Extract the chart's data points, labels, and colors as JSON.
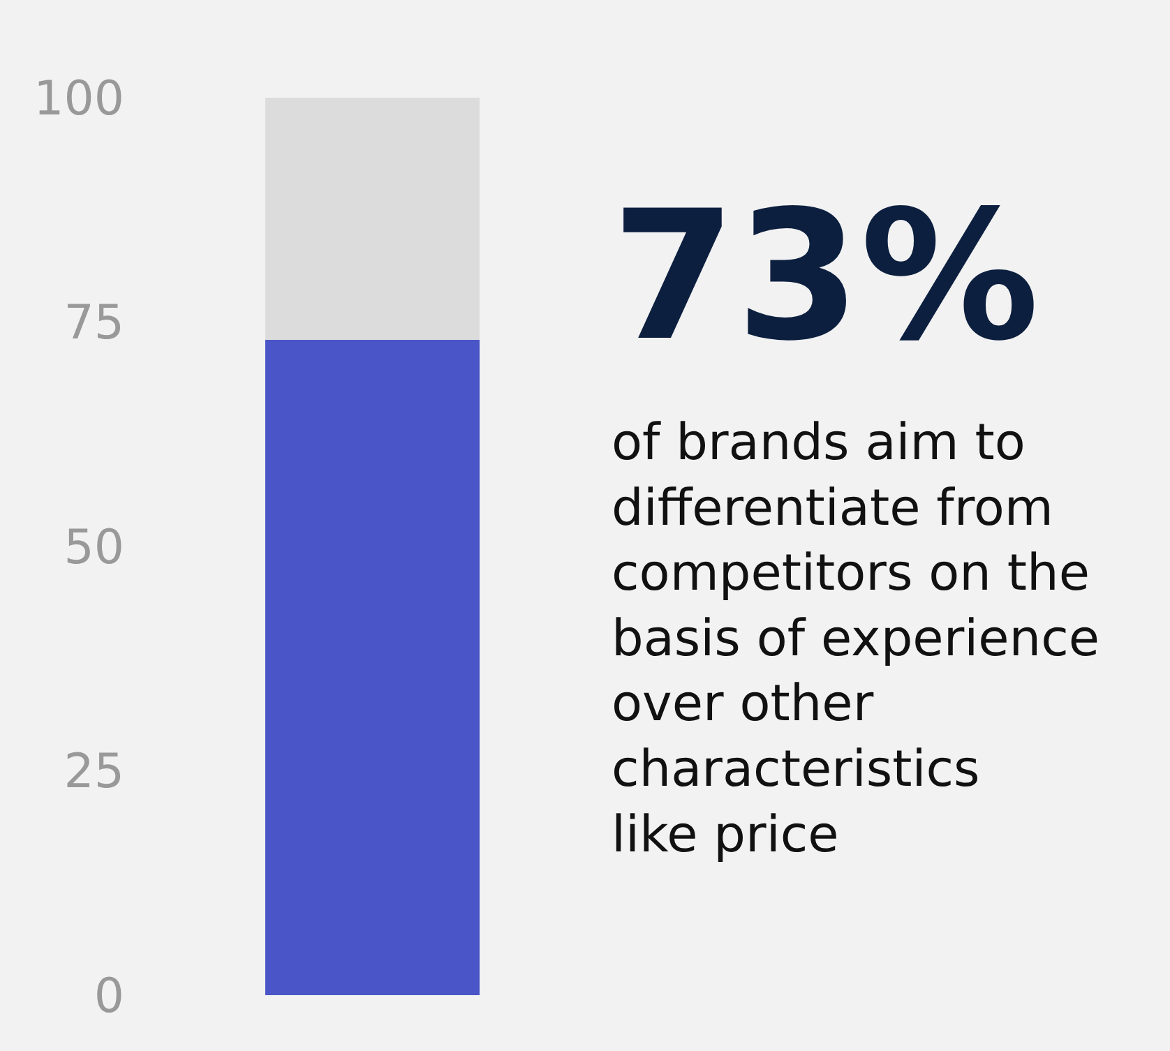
{
  "chart_data": {
    "type": "bar",
    "stacked": true,
    "categories": [
      null
    ],
    "series": [
      {
        "color": "#4a55c8",
        "values": [
          73
        ]
      },
      {
        "color": "#dcdcdc",
        "values": [
          27
        ]
      }
    ],
    "ylim": [
      0,
      100
    ],
    "yticks": [
      0,
      25,
      50,
      75,
      100
    ],
    "grid": false,
    "tick_labels": "y",
    "annotations": [
      "73%",
      "of brands aim to\ndifferentiate from\ncompetitors on the\nbasis of experience\nover other\ncharacteristics\nlike price"
    ]
  }
}
